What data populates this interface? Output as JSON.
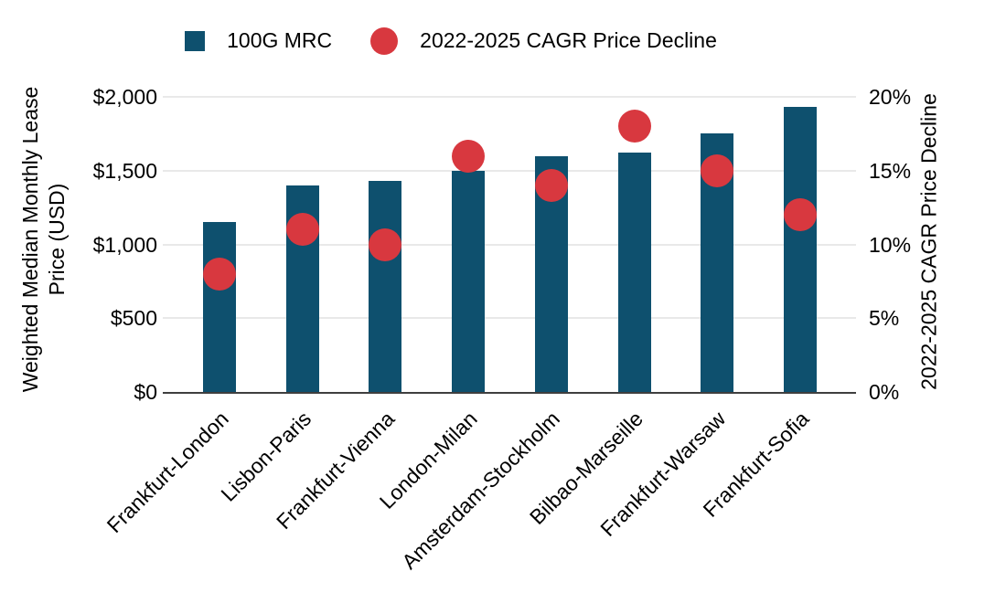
{
  "colors": {
    "bar": "#0e506e",
    "dot": "#d8383f",
    "gridline": "#e9e9e9",
    "axis_line": "#3f3f3f",
    "text": "#000000"
  },
  "legend": {
    "items": [
      {
        "label": "100G MRC",
        "marker": "square",
        "color": "#0e506e"
      },
      {
        "label": "2022-2025 CAGR Price Decline",
        "marker": "circle",
        "color": "#d8383f"
      }
    ]
  },
  "chart_data": {
    "type": "bar",
    "subtype": "combo-bar-scatter-dual-axis",
    "categories": [
      "Frankfurt-London",
      "Lisbon-Paris",
      "Frankfurt-Vienna",
      "London-Milan",
      "Amsterdam-Stockholm",
      "Bilbao-Marseille",
      "Frankfurt-Warsaw",
      "Frankfurt-Sofia"
    ],
    "series": [
      {
        "name": "100G MRC",
        "type": "bar",
        "yaxis": "left",
        "color": "#0e506e",
        "values": [
          1150,
          1400,
          1430,
          1500,
          1600,
          1620,
          1750,
          1930
        ]
      },
      {
        "name": "2022-2025 CAGR Price Decline",
        "type": "scatter",
        "yaxis": "right",
        "color": "#d8383f",
        "values": [
          8,
          11,
          10,
          16,
          14,
          18,
          15,
          12
        ]
      }
    ],
    "left_axis": {
      "title": "Weighted Median Monthly Lease Price (USD)",
      "ticks": [
        "$0",
        "$500",
        "$1,000",
        "$1,500",
        "$2,000"
      ],
      "range": [
        0,
        2000
      ]
    },
    "right_axis": {
      "title": "2022-2025 CAGR Price Decline",
      "ticks": [
        "0%",
        "5%",
        "10%",
        "15%",
        "20%"
      ],
      "range": [
        0,
        20
      ]
    },
    "grid": "horizontal",
    "legend_position": "top",
    "x_label_rotation_deg": -45
  }
}
